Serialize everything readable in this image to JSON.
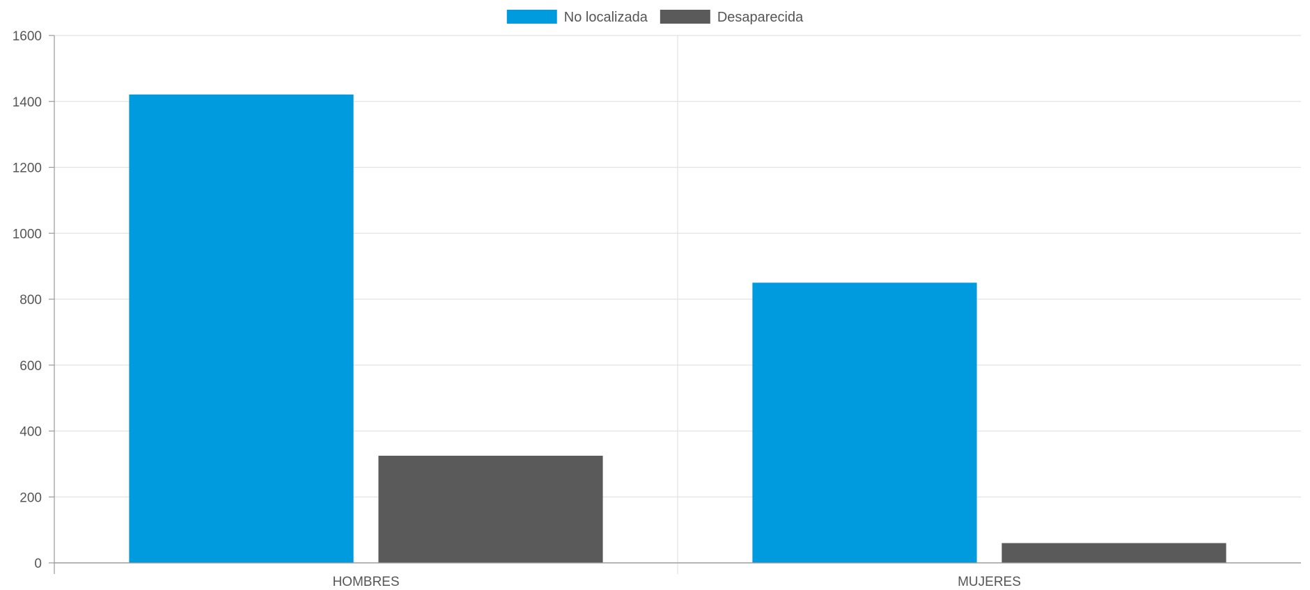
{
  "chart_data": {
    "type": "bar",
    "title": "",
    "xlabel": "",
    "ylabel": "",
    "categories": [
      "HOMBRES",
      "MUJERES"
    ],
    "series": [
      {
        "name": "No localizada",
        "color": "#009ADF",
        "values": [
          1421,
          850
        ]
      },
      {
        "name": "Desaparecida",
        "color": "#5A5A5A",
        "values": [
          325,
          60
        ]
      }
    ],
    "ylim": [
      0,
      1600
    ],
    "yticks": [
      "0",
      "200",
      "400",
      "600",
      "800",
      "1000",
      "1200",
      "1400",
      "1600"
    ],
    "grid": true,
    "legend_position": "top-center"
  }
}
